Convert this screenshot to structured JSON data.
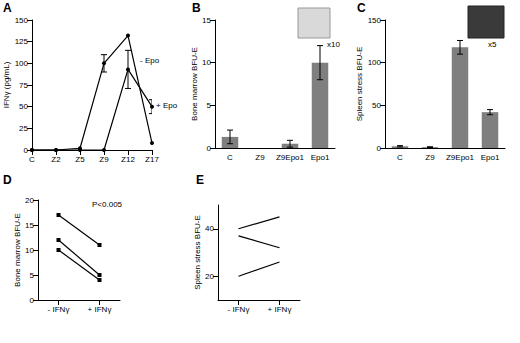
{
  "chart_data": [
    {
      "title": "A",
      "type": "line",
      "ylabel": "IFNγ (pg/mL)",
      "categories": [
        "C",
        "Z2",
        "Z5",
        "Z9",
        "Z12",
        "Z17"
      ],
      "series": [
        {
          "name": "- Epo",
          "color": "#000000",
          "marker": "circle",
          "values": [
            0,
            0,
            2,
            100,
            132,
            8
          ],
          "errors": [
            0,
            0,
            0,
            10,
            0,
            0
          ]
        },
        {
          "name": "+ Epo",
          "color": "#000000",
          "marker": "circle",
          "values": [
            0,
            0,
            0,
            0,
            93,
            50
          ],
          "errors": [
            0,
            0,
            0,
            0,
            22,
            8
          ]
        }
      ],
      "ylim": [
        0,
        150
      ],
      "yticks": [
        0,
        25,
        50,
        75,
        100,
        125,
        150
      ],
      "grid": false
    },
    {
      "title": "B",
      "type": "bar",
      "ylabel": "Bone marrow BFU-E",
      "categories": [
        "C",
        "Z9",
        "Z9Epo1",
        "Epo1"
      ],
      "values": [
        1.3,
        0,
        0.5,
        10
      ],
      "errors": [
        0.8,
        0,
        0.4,
        2
      ],
      "color": "#7f7f7f",
      "ylim": [
        0,
        15
      ],
      "yticks": [
        0,
        5,
        10,
        15
      ],
      "grid": false,
      "annotations": [
        "x10"
      ]
    },
    {
      "title": "C",
      "type": "bar",
      "ylabel": "Spleen stress BFU-E",
      "categories": [
        "C",
        "Z9",
        "Z9Epo1",
        "Epo1"
      ],
      "values": [
        2,
        1,
        118,
        42
      ],
      "errors": [
        0.8,
        0.5,
        8,
        3
      ],
      "color": "#7f7f7f",
      "ylim": [
        0,
        150
      ],
      "yticks": [
        0,
        50,
        100,
        150
      ],
      "grid": false,
      "annotations": [
        "x5"
      ]
    },
    {
      "title": "D",
      "type": "line",
      "ylabel": "Bone marrow BFU-E",
      "categories": [
        "- IFNγ",
        "+ IFNγ"
      ],
      "series": [
        {
          "color": "#000000",
          "marker": "square",
          "values": [
            17,
            11
          ]
        },
        {
          "color": "#000000",
          "marker": "square",
          "values": [
            12,
            5
          ]
        },
        {
          "color": "#000000",
          "marker": "square",
          "values": [
            10,
            4
          ]
        }
      ],
      "ylim": [
        0,
        20
      ],
      "yticks": [
        0,
        5,
        10,
        15,
        20
      ],
      "grid": false,
      "annotations": [
        "P<0.005"
      ]
    },
    {
      "title": "E",
      "type": "line",
      "ylabel": "Spleen stress BFU-E",
      "categories": [
        "- IFNγ",
        "+ IFNγ"
      ],
      "series": [
        {
          "color": "#000000",
          "marker": "none",
          "values": [
            40,
            45
          ]
        },
        {
          "color": "#000000",
          "marker": "none",
          "values": [
            37,
            32
          ]
        },
        {
          "color": "#000000",
          "marker": "none",
          "values": [
            20,
            26
          ]
        }
      ],
      "ylim": [
        10,
        50
      ],
      "yticks": [
        20,
        40
      ],
      "grid": false
    }
  ]
}
